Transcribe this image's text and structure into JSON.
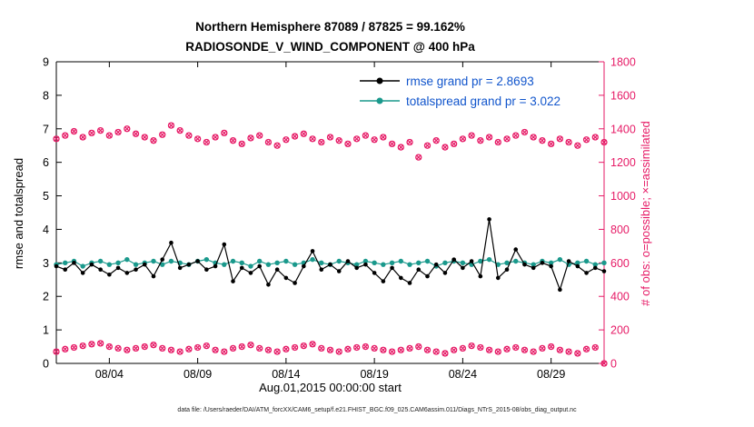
{
  "caption": "data file: /Users/raeder/DAI/ATM_forcXX/CAM6_setup/f.e21.FHIST_BGC.f09_025.CAM6assim.011/Diags_NTrS_2015-08/obs_diag_output.nc",
  "chart_data": {
    "type": "line",
    "title_line1": "Northern Hemisphere 87089 / 87825 = 99.162%",
    "title_line2": "RADIOSONDE_V_WIND_COMPONENT @ 400 hPa",
    "xlabel": "Aug.01,2015 00:00:00 start",
    "x_min": 0,
    "x_max": 31,
    "x_step_days": 0.5,
    "xticks": [
      {
        "day": 3,
        "label": "08/04"
      },
      {
        "day": 8,
        "label": "08/09"
      },
      {
        "day": 13,
        "label": "08/14"
      },
      {
        "day": 18,
        "label": "08/19"
      },
      {
        "day": 23,
        "label": "08/24"
      },
      {
        "day": 28,
        "label": "08/29"
      }
    ],
    "left_axis": {
      "label": "rmse and totalspread",
      "min": 0,
      "max": 9,
      "tick_step": 1,
      "color": "#000000"
    },
    "right_axis": {
      "label": "# of obs: o=possible; ×=assimilated",
      "min": 0,
      "max": 1800,
      "tick_step": 200,
      "color": "#e61a66"
    },
    "legend_text_color": "#1155cc",
    "legend": [
      {
        "label": "rmse grand pr = 2.8693",
        "color": "#000000",
        "grand_mean": 2.8693,
        "series": "rmse"
      },
      {
        "label": "totalspread grand pr = 3.022",
        "color": "#1a998c",
        "grand_mean": 3.022,
        "series": "totalspread"
      }
    ],
    "series": [
      {
        "name": "rmse",
        "axis": "left",
        "color": "#000000",
        "marker": "dot",
        "line": true,
        "values": [
          2.9,
          2.8,
          3.0,
          2.7,
          2.95,
          2.8,
          2.65,
          2.85,
          2.7,
          2.8,
          2.95,
          2.6,
          3.1,
          3.6,
          2.85,
          2.95,
          3.05,
          2.8,
          2.9,
          3.55,
          2.45,
          2.85,
          2.7,
          2.9,
          2.35,
          2.8,
          2.55,
          2.4,
          2.9,
          3.35,
          2.8,
          2.95,
          2.75,
          3.05,
          2.85,
          2.95,
          2.7,
          2.45,
          2.85,
          2.55,
          2.4,
          2.8,
          2.6,
          2.95,
          2.7,
          3.1,
          2.85,
          3.05,
          2.6,
          4.3,
          2.55,
          2.8,
          3.4,
          2.95,
          2.85,
          3.0,
          2.9,
          2.2,
          3.05,
          2.9,
          2.7,
          2.85,
          2.75
        ]
      },
      {
        "name": "totalspread",
        "axis": "left",
        "color": "#1a998c",
        "marker": "dot",
        "line": true,
        "values": [
          2.95,
          3.0,
          3.05,
          2.9,
          3.0,
          3.05,
          2.95,
          3.0,
          3.1,
          2.95,
          3.0,
          3.05,
          2.95,
          3.05,
          3.0,
          2.95,
          3.05,
          3.1,
          3.0,
          2.95,
          3.05,
          3.0,
          2.9,
          3.05,
          2.95,
          3.0,
          3.05,
          2.95,
          3.0,
          3.1,
          3.0,
          2.95,
          3.05,
          3.0,
          2.95,
          3.05,
          3.0,
          2.95,
          3.0,
          3.05,
          2.95,
          3.0,
          3.05,
          2.9,
          3.0,
          3.05,
          3.0,
          2.95,
          3.05,
          3.1,
          2.95,
          3.0,
          3.05,
          3.0,
          2.95,
          3.05,
          3.0,
          3.1,
          2.95,
          3.0,
          3.05,
          2.95,
          3.0
        ]
      },
      {
        "name": "num_obs_synoptic_00_12Z",
        "axis": "right",
        "color": "#e61a66",
        "marker": "o_and_x",
        "line": false,
        "values": [
          1340,
          1360,
          1385,
          1350,
          1375,
          1390,
          1360,
          1380,
          1400,
          1370,
          1350,
          1330,
          1365,
          1420,
          1390,
          1360,
          1340,
          1320,
          1350,
          1375,
          1330,
          1310,
          1345,
          1360,
          1320,
          1300,
          1335,
          1355,
          1370,
          1340,
          1320,
          1350,
          1330,
          1310,
          1340,
          1360,
          1335,
          1350,
          1310,
          1290,
          1320,
          1230,
          1300,
          1330,
          1290,
          1310,
          1340,
          1360,
          1330,
          1350,
          1320,
          1340,
          1360,
          1380,
          1350,
          1330,
          1310,
          1340,
          1320,
          1300,
          1335,
          1350,
          1320
        ]
      },
      {
        "name": "num_obs_offsynoptic_06_18Z",
        "axis": "right",
        "color": "#e61a66",
        "marker": "o_and_x",
        "line": false,
        "values": [
          70,
          85,
          95,
          105,
          115,
          120,
          100,
          90,
          80,
          90,
          100,
          110,
          90,
          80,
          70,
          85,
          95,
          105,
          80,
          70,
          90,
          100,
          110,
          90,
          80,
          70,
          85,
          95,
          105,
          115,
          90,
          80,
          70,
          85,
          95,
          100,
          90,
          80,
          70,
          80,
          90,
          100,
          80,
          70,
          60,
          80,
          90,
          105,
          95,
          80,
          70,
          85,
          95,
          80,
          70,
          90,
          100,
          80,
          70,
          60,
          85,
          95,
          0
        ]
      }
    ]
  }
}
